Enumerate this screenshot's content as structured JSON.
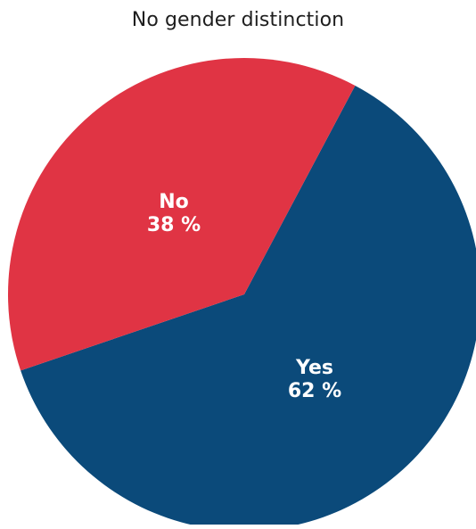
{
  "chart_data": {
    "type": "pie",
    "title": "No gender distinction",
    "slices": [
      {
        "label": "Yes",
        "value": 62,
        "value_label": "62 %",
        "color": "#0b4a7a"
      },
      {
        "label": "No",
        "value": 38,
        "value_label": "38 %",
        "color": "#e03444"
      }
    ],
    "start_angle_deg": 28,
    "legend": "none"
  }
}
